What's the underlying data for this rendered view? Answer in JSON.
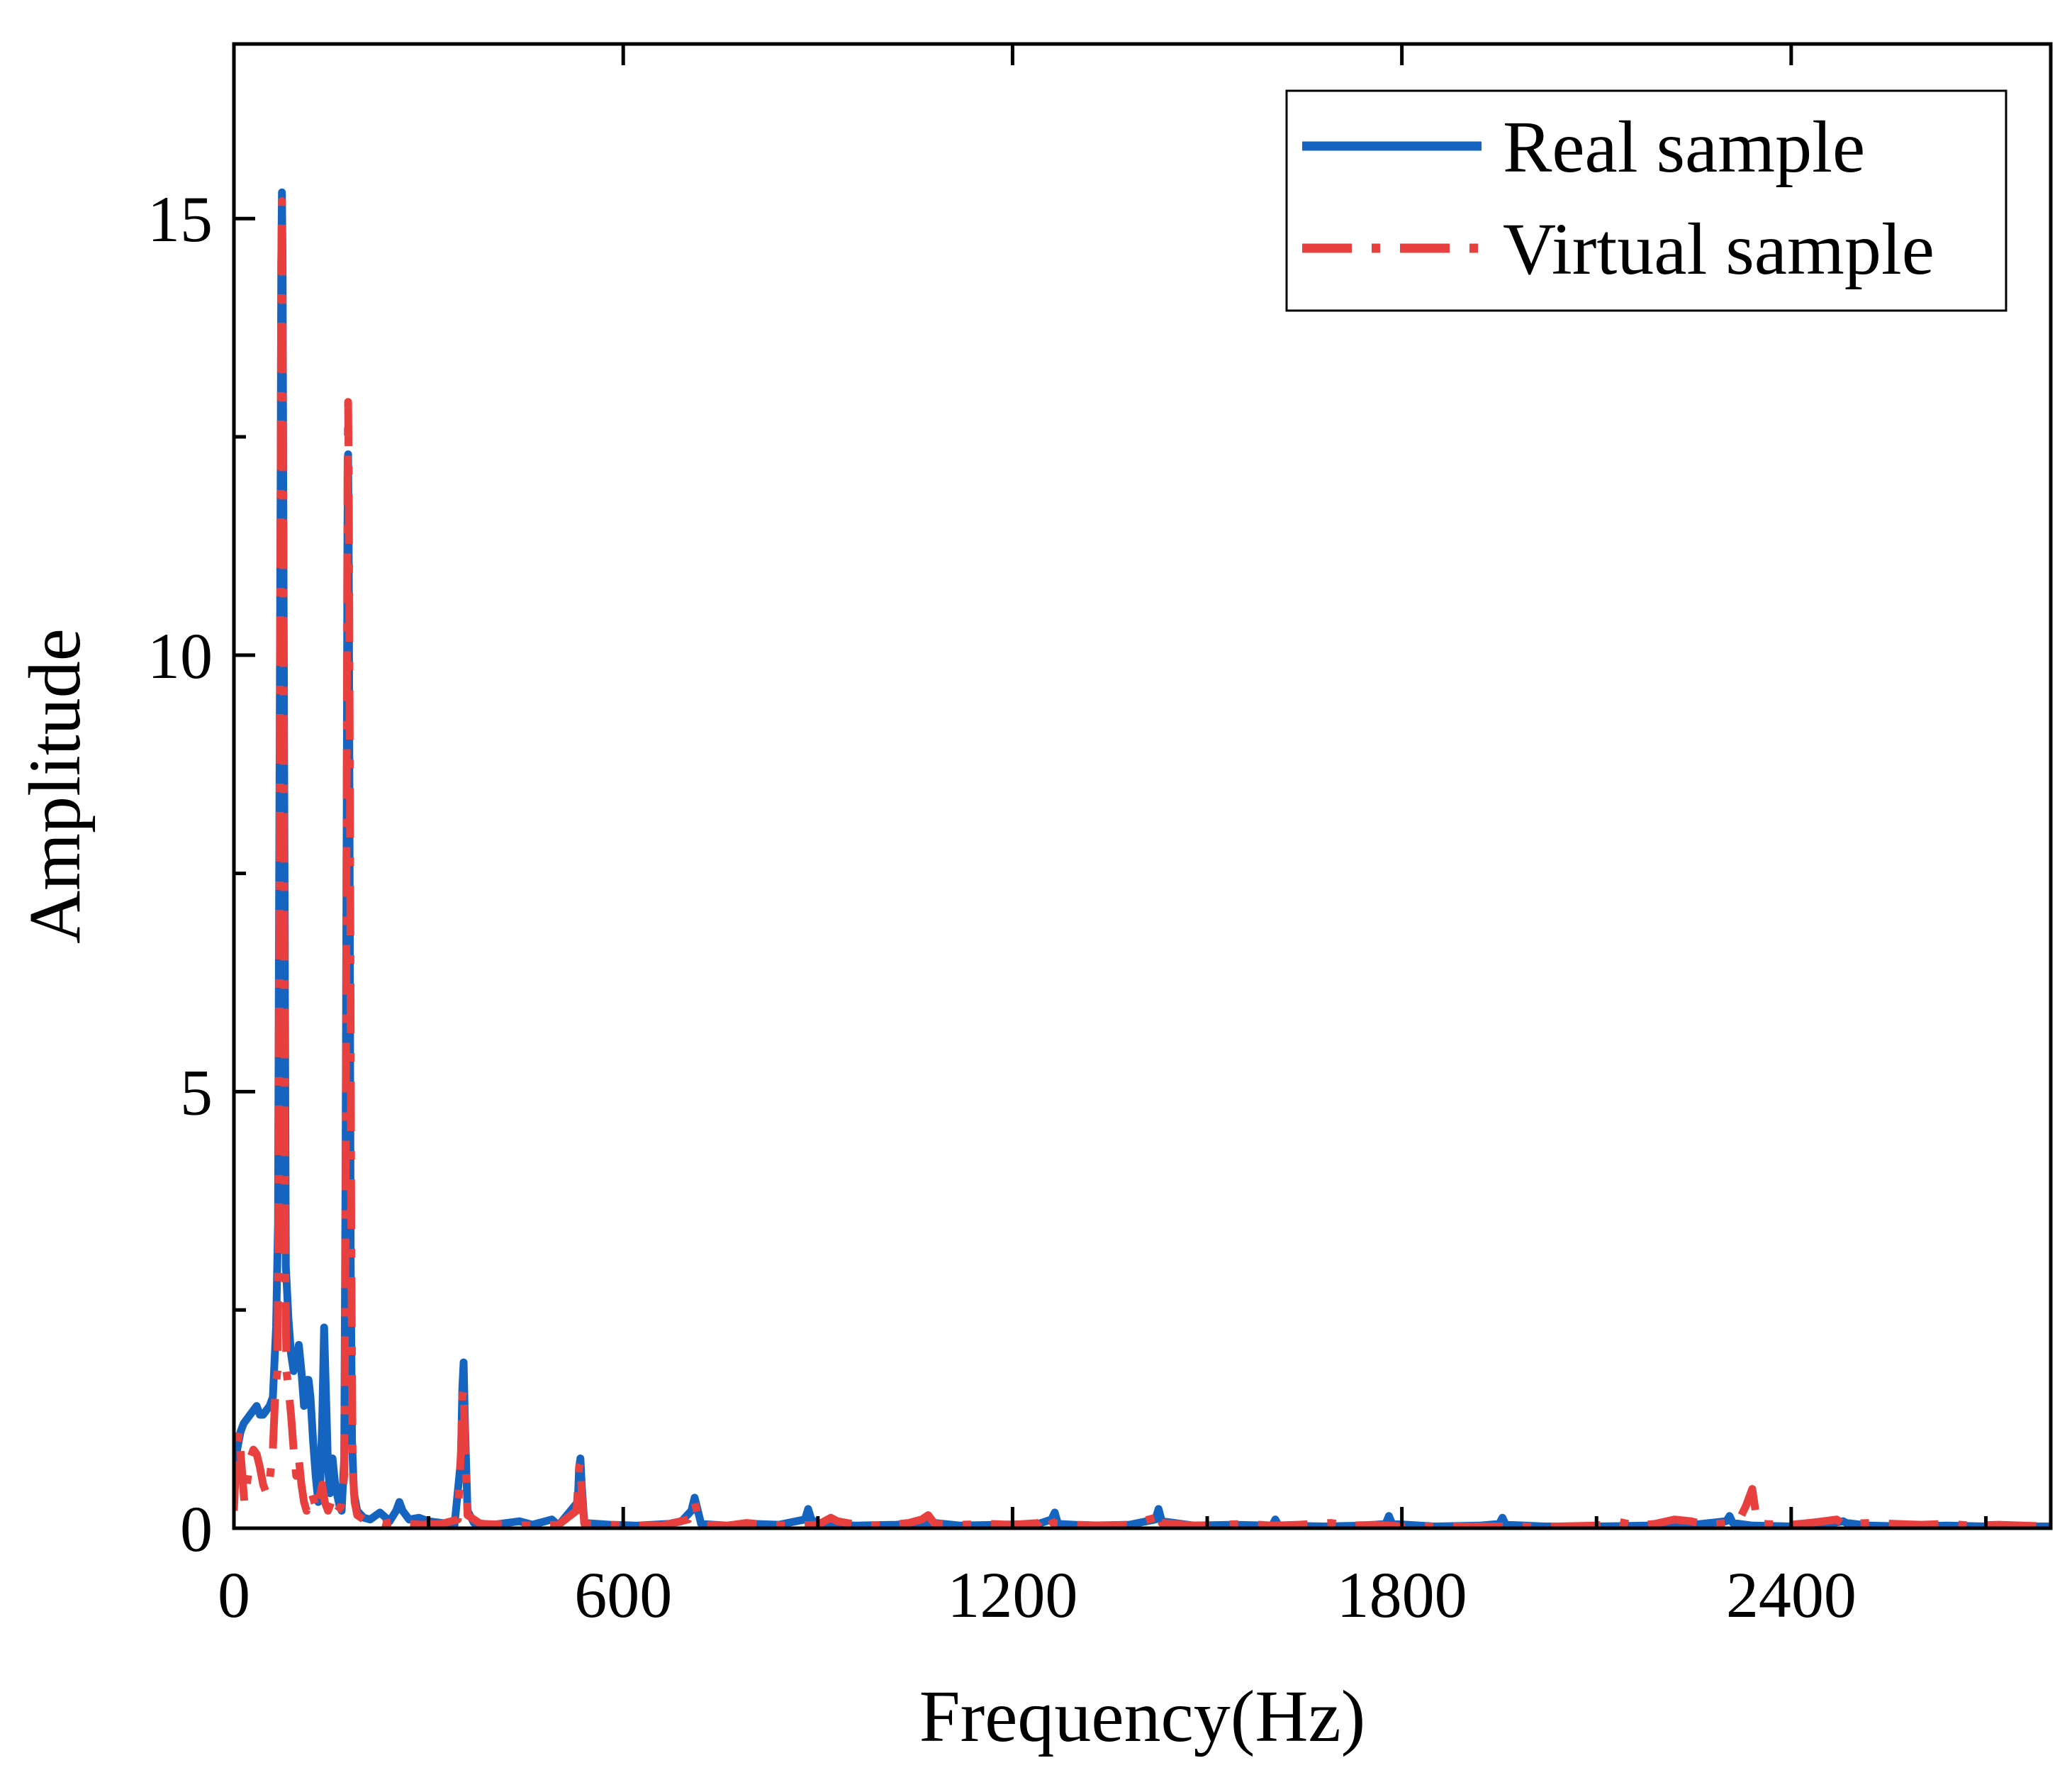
{
  "chart_data": {
    "type": "line",
    "title": "",
    "xlabel": "Frequency(Hz)",
    "ylabel": "Amplitude",
    "xlim": [
      0,
      2800
    ],
    "ylim": [
      0,
      17
    ],
    "grid": false,
    "legend_position": "top-right",
    "x_ticks": [
      {
        "value": 0,
        "label": "0"
      },
      {
        "value": 600,
        "label": "600"
      },
      {
        "value": 1200,
        "label": "1200"
      },
      {
        "value": 1800,
        "label": "1800"
      },
      {
        "value": 2400,
        "label": "2400"
      }
    ],
    "x_minor_ticks": [
      300,
      900,
      1500,
      2100,
      2700
    ],
    "y_ticks": [
      {
        "value": 0,
        "label": "0"
      },
      {
        "value": 5,
        "label": "5"
      },
      {
        "value": 10,
        "label": "10"
      },
      {
        "value": 15,
        "label": "15"
      }
    ],
    "y_minor_ticks": [
      2.5,
      7.5,
      12.5
    ],
    "series": [
      {
        "name": "Real sample",
        "color": "#1565C0",
        "style": "solid",
        "points": [
          [
            0,
            0.3
          ],
          [
            5,
            0.9
          ],
          [
            10,
            1.1
          ],
          [
            15,
            1.2
          ],
          [
            20,
            1.25
          ],
          [
            25,
            1.3
          ],
          [
            30,
            1.35
          ],
          [
            35,
            1.4
          ],
          [
            40,
            1.3
          ],
          [
            45,
            1.3
          ],
          [
            50,
            1.35
          ],
          [
            55,
            1.4
          ],
          [
            60,
            1.5
          ],
          [
            65,
            2.3
          ],
          [
            68,
            3.5
          ],
          [
            70,
            8.0
          ],
          [
            72,
            12.0
          ],
          [
            73,
            14.5
          ],
          [
            74,
            15.3
          ],
          [
            75,
            14.5
          ],
          [
            76,
            12.0
          ],
          [
            78,
            7.5
          ],
          [
            80,
            3.0
          ],
          [
            84,
            2.4
          ],
          [
            88,
            2.0
          ],
          [
            92,
            1.8
          ],
          [
            96,
            1.9
          ],
          [
            100,
            2.1
          ],
          [
            104,
            1.8
          ],
          [
            108,
            1.4
          ],
          [
            112,
            1.7
          ],
          [
            115,
            1.7
          ],
          [
            118,
            1.5
          ],
          [
            122,
            1.0
          ],
          [
            126,
            0.6
          ],
          [
            130,
            0.3
          ],
          [
            133,
            0.5
          ],
          [
            136,
            1.2
          ],
          [
            139,
            2.3
          ],
          [
            142,
            1.5
          ],
          [
            145,
            0.7
          ],
          [
            148,
            0.4
          ],
          [
            152,
            0.8
          ],
          [
            156,
            0.5
          ],
          [
            160,
            0.35
          ],
          [
            163,
            0.25
          ],
          [
            166,
            0.2
          ],
          [
            170,
            0.8
          ],
          [
            172,
            4.0
          ],
          [
            174,
            8.5
          ],
          [
            175,
            11.5
          ],
          [
            176,
            12.3
          ],
          [
            177,
            11.0
          ],
          [
            178,
            8.5
          ],
          [
            180,
            3.0
          ],
          [
            182,
            1.0
          ],
          [
            185,
            0.4
          ],
          [
            190,
            0.2
          ],
          [
            200,
            0.12
          ],
          [
            210,
            0.1
          ],
          [
            225,
            0.18
          ],
          [
            240,
            0.08
          ],
          [
            250,
            0.2
          ],
          [
            255,
            0.3
          ],
          [
            260,
            0.2
          ],
          [
            270,
            0.1
          ],
          [
            285,
            0.12
          ],
          [
            300,
            0.08
          ],
          [
            320,
            0.06
          ],
          [
            340,
            0.04
          ],
          [
            350,
            0.8
          ],
          [
            352,
            1.6
          ],
          [
            354,
            1.9
          ],
          [
            356,
            1.2
          ],
          [
            360,
            0.2
          ],
          [
            370,
            0.06
          ],
          [
            400,
            0.04
          ],
          [
            440,
            0.08
          ],
          [
            460,
            0.04
          ],
          [
            490,
            0.1
          ],
          [
            500,
            0.03
          ],
          [
            530,
            0.3
          ],
          [
            532,
            0.7
          ],
          [
            534,
            0.8
          ],
          [
            536,
            0.5
          ],
          [
            540,
            0.06
          ],
          [
            580,
            0.04
          ],
          [
            620,
            0.03
          ],
          [
            670,
            0.05
          ],
          [
            690,
            0.08
          ],
          [
            705,
            0.2
          ],
          [
            710,
            0.35
          ],
          [
            715,
            0.2
          ],
          [
            720,
            0.05
          ],
          [
            760,
            0.03
          ],
          [
            800,
            0.05
          ],
          [
            840,
            0.04
          ],
          [
            880,
            0.1
          ],
          [
            885,
            0.22
          ],
          [
            890,
            0.1
          ],
          [
            900,
            0.05
          ],
          [
            960,
            0.03
          ],
          [
            1020,
            0.04
          ],
          [
            1080,
            0.06
          ],
          [
            1120,
            0.03
          ],
          [
            1180,
            0.04
          ],
          [
            1240,
            0.05
          ],
          [
            1260,
            0.1
          ],
          [
            1265,
            0.18
          ],
          [
            1270,
            0.05
          ],
          [
            1320,
            0.03
          ],
          [
            1380,
            0.04
          ],
          [
            1420,
            0.1
          ],
          [
            1425,
            0.22
          ],
          [
            1430,
            0.08
          ],
          [
            1480,
            0.03
          ],
          [
            1540,
            0.04
          ],
          [
            1600,
            0.03
          ],
          [
            1605,
            0.1
          ],
          [
            1610,
            0.03
          ],
          [
            1680,
            0.02
          ],
          [
            1740,
            0.03
          ],
          [
            1775,
            0.05
          ],
          [
            1780,
            0.14
          ],
          [
            1785,
            0.05
          ],
          [
            1850,
            0.02
          ],
          [
            1920,
            0.03
          ],
          [
            1950,
            0.05
          ],
          [
            1955,
            0.12
          ],
          [
            1960,
            0.04
          ],
          [
            2020,
            0.02
          ],
          [
            2100,
            0.02
          ],
          [
            2180,
            0.03
          ],
          [
            2250,
            0.04
          ],
          [
            2300,
            0.08
          ],
          [
            2305,
            0.14
          ],
          [
            2310,
            0.06
          ],
          [
            2340,
            0.03
          ],
          [
            2400,
            0.02
          ],
          [
            2450,
            0.04
          ],
          [
            2480,
            0.08
          ],
          [
            2485,
            0.06
          ],
          [
            2520,
            0.03
          ],
          [
            2580,
            0.02
          ],
          [
            2640,
            0.03
          ],
          [
            2700,
            0.02
          ],
          [
            2760,
            0.02
          ],
          [
            2800,
            0.02
          ]
        ]
      },
      {
        "name": "Virtual sample",
        "color": "#E8403F",
        "style": "dash-dot",
        "points": [
          [
            0,
            0.2
          ],
          [
            4,
            0.9
          ],
          [
            8,
            1.1
          ],
          [
            12,
            0.7
          ],
          [
            16,
            0.3
          ],
          [
            20,
            0.5
          ],
          [
            25,
            0.8
          ],
          [
            30,
            0.9
          ],
          [
            35,
            0.85
          ],
          [
            40,
            0.7
          ],
          [
            45,
            0.5
          ],
          [
            50,
            0.4
          ],
          [
            55,
            0.55
          ],
          [
            60,
            0.9
          ],
          [
            64,
            1.6
          ],
          [
            67,
            1.8
          ],
          [
            69,
            4.0
          ],
          [
            71,
            9.5
          ],
          [
            73,
            14.5
          ],
          [
            74,
            15.2
          ],
          [
            75,
            14.0
          ],
          [
            77,
            9.0
          ],
          [
            79,
            3.0
          ],
          [
            81,
            1.8
          ],
          [
            84,
            1.6
          ],
          [
            88,
            1.3
          ],
          [
            92,
            0.9
          ],
          [
            96,
            0.6
          ],
          [
            100,
            0.8
          ],
          [
            104,
            0.5
          ],
          [
            108,
            0.3
          ],
          [
            112,
            0.2
          ],
          [
            116,
            0.35
          ],
          [
            120,
            0.4
          ],
          [
            124,
            0.3
          ],
          [
            128,
            0.2
          ],
          [
            132,
            0.35
          ],
          [
            136,
            0.5
          ],
          [
            140,
            0.3
          ],
          [
            145,
            0.2
          ],
          [
            150,
            0.3
          ],
          [
            155,
            0.15
          ],
          [
            160,
            0.2
          ],
          [
            165,
            0.25
          ],
          [
            170,
            0.6
          ],
          [
            172,
            3.5
          ],
          [
            174,
            9.0
          ],
          [
            175,
            12.0
          ],
          [
            176,
            12.9
          ],
          [
            177,
            12.0
          ],
          [
            179,
            8.0
          ],
          [
            181,
            3.0
          ],
          [
            183,
            0.7
          ],
          [
            186,
            0.3
          ],
          [
            190,
            0.15
          ],
          [
            200,
            0.1
          ],
          [
            215,
            0.08
          ],
          [
            230,
            0.05
          ],
          [
            250,
            0.08
          ],
          [
            270,
            0.05
          ],
          [
            290,
            0.04
          ],
          [
            320,
            0.05
          ],
          [
            345,
            0.1
          ],
          [
            350,
            0.9
          ],
          [
            352,
            1.5
          ],
          [
            354,
            1.6
          ],
          [
            356,
            1.0
          ],
          [
            360,
            0.15
          ],
          [
            380,
            0.05
          ],
          [
            420,
            0.04
          ],
          [
            460,
            0.03
          ],
          [
            500,
            0.04
          ],
          [
            528,
            0.2
          ],
          [
            532,
            0.7
          ],
          [
            534,
            0.75
          ],
          [
            536,
            0.4
          ],
          [
            540,
            0.05
          ],
          [
            580,
            0.04
          ],
          [
            620,
            0.03
          ],
          [
            660,
            0.03
          ],
          [
            700,
            0.1
          ],
          [
            710,
            0.3
          ],
          [
            715,
            0.15
          ],
          [
            720,
            0.04
          ],
          [
            760,
            0.03
          ],
          [
            790,
            0.06
          ],
          [
            820,
            0.04
          ],
          [
            860,
            0.03
          ],
          [
            900,
            0.04
          ],
          [
            920,
            0.12
          ],
          [
            930,
            0.08
          ],
          [
            960,
            0.04
          ],
          [
            1000,
            0.03
          ],
          [
            1040,
            0.06
          ],
          [
            1060,
            0.1
          ],
          [
            1070,
            0.15
          ],
          [
            1080,
            0.05
          ],
          [
            1120,
            0.04
          ],
          [
            1160,
            0.05
          ],
          [
            1200,
            0.04
          ],
          [
            1240,
            0.06
          ],
          [
            1255,
            0.18
          ],
          [
            1262,
            0.06
          ],
          [
            1300,
            0.04
          ],
          [
            1340,
            0.03
          ],
          [
            1380,
            0.04
          ],
          [
            1420,
            0.12
          ],
          [
            1425,
            0.2
          ],
          [
            1430,
            0.06
          ],
          [
            1480,
            0.03
          ],
          [
            1520,
            0.04
          ],
          [
            1560,
            0.05
          ],
          [
            1600,
            0.03
          ],
          [
            1640,
            0.04
          ],
          [
            1690,
            0.06
          ],
          [
            1720,
            0.03
          ],
          [
            1760,
            0.04
          ],
          [
            1800,
            0.02
          ],
          [
            1860,
            0.02
          ],
          [
            1920,
            0.02
          ],
          [
            1980,
            0.02
          ],
          [
            2040,
            0.02
          ],
          [
            2100,
            0.03
          ],
          [
            2130,
            0.08
          ],
          [
            2160,
            0.03
          ],
          [
            2190,
            0.05
          ],
          [
            2220,
            0.1
          ],
          [
            2245,
            0.08
          ],
          [
            2270,
            0.04
          ],
          [
            2300,
            0.06
          ],
          [
            2320,
            0.1
          ],
          [
            2330,
            0.25
          ],
          [
            2340,
            0.45
          ],
          [
            2345,
            0.2
          ],
          [
            2350,
            0.05
          ],
          [
            2400,
            0.04
          ],
          [
            2440,
            0.07
          ],
          [
            2470,
            0.1
          ],
          [
            2480,
            0.05
          ],
          [
            2520,
            0.06
          ],
          [
            2560,
            0.05
          ],
          [
            2600,
            0.04
          ],
          [
            2640,
            0.05
          ],
          [
            2680,
            0.03
          ],
          [
            2720,
            0.04
          ],
          [
            2760,
            0.03
          ],
          [
            2800,
            0.02
          ]
        ]
      }
    ],
    "legend": [
      {
        "label": "Real sample",
        "color": "#1565C0",
        "style": "solid"
      },
      {
        "label": "Virtual sample",
        "color": "#E8403F",
        "style": "dash-dot"
      }
    ]
  }
}
